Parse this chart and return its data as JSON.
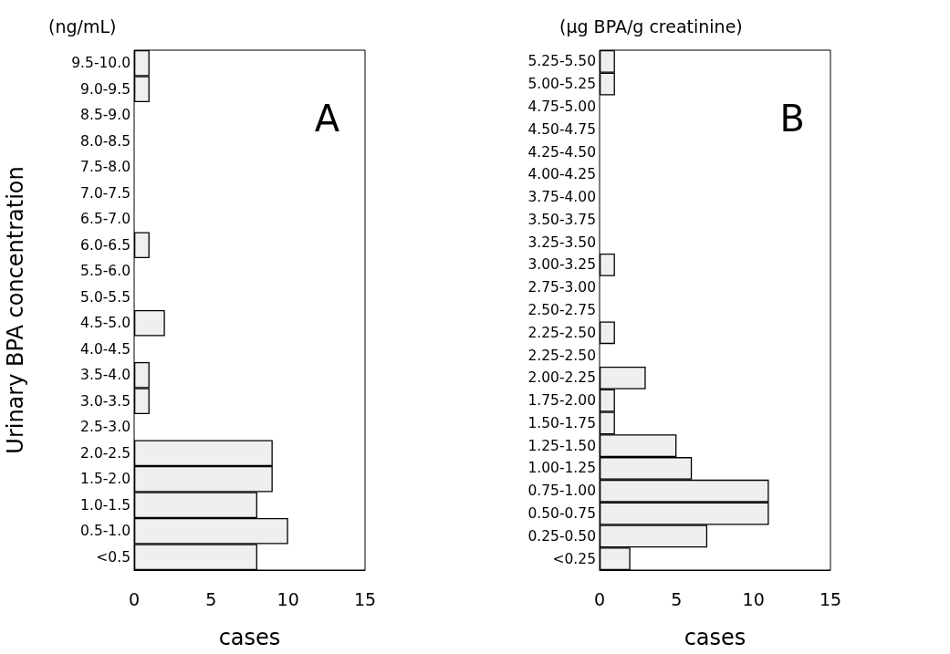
{
  "chart_data": [
    {
      "type": "bar",
      "orientation": "horizontal",
      "title": "(ng/mL)",
      "ylabel": "Urinary BPA concentration",
      "xlabel": "cases",
      "categories": [
        "9.5-10.0",
        "9.0-9.5",
        "8.5-9.0",
        "8.0-8.5",
        "7.5-8.0",
        "7.0-7.5",
        "6.5-7.0",
        "6.0-6.5",
        "5.5-6.0",
        "5.0-5.5",
        "4.5-5.0",
        "4.0-4.5",
        "3.5-4.0",
        "3.0-3.5",
        "2.5-3.0",
        "2.0-2.5",
        "1.5-2.0",
        "1.0-1.5",
        "0.5-1.0",
        "<0.5"
      ],
      "values": [
        1,
        1,
        0,
        0,
        0,
        0,
        0,
        1,
        0,
        0,
        2,
        0,
        1,
        1,
        0,
        9,
        9,
        8,
        10,
        8
      ],
      "color": "#efefef",
      "xlim": [
        0,
        15
      ],
      "xticks": [
        0,
        5,
        10,
        15
      ],
      "grid": false,
      "annotations": [
        "A"
      ]
    },
    {
      "type": "bar",
      "orientation": "horizontal",
      "title": "(μg BPA/g creatinine)",
      "xlabel": "cases",
      "categories": [
        "5.25-5.50",
        "5.00-5.25",
        "4.75-5.00",
        "4.50-4.75",
        "4.25-4.50",
        "4.00-4.25",
        "3.75-4.00",
        "3.50-3.75",
        "3.25-3.50",
        "3.00-3.25",
        "2.75-3.00",
        "2.50-2.75",
        "2.25-2.50",
        "2.25-2.50",
        "2.00-2.25",
        "1.75-2.00",
        "1.50-1.75",
        "1.25-1.50",
        "1.00-1.25",
        "0.75-1.00",
        "0.50-0.75",
        "0.25-0.50",
        "<0.25"
      ],
      "values": [
        1,
        1,
        0,
        0,
        0,
        0,
        0,
        0,
        0,
        1,
        0,
        0,
        1,
        0,
        3,
        1,
        1,
        5,
        6,
        11,
        11,
        7,
        2
      ],
      "color": "#efefef",
      "xlim": [
        0,
        15
      ],
      "xticks": [
        0,
        5,
        10,
        15
      ],
      "grid": false,
      "annotations": [
        "B"
      ]
    }
  ]
}
